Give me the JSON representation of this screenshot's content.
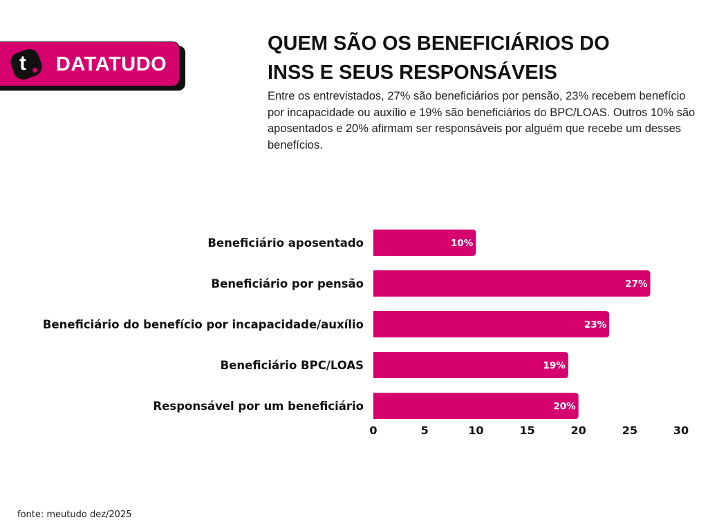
{
  "brand": {
    "logo_letter": "t",
    "name": "DATATUDO",
    "color": "#d6006e"
  },
  "header": {
    "title_line1": "QUEM SÃO OS BENEFICIÁRIOS DO",
    "title_line2": "INSS E SEUS RESPONSÁVEIS",
    "subtitle": "Entre os entrevistados, 27% são beneficiários por pensão, 23% recebem benefício por incapacidade ou auxílio e 19% são beneficiários do BPC/LOAS. Outros 10% são aposentados e 20% afirmam ser responsáveis por alguém que recebe um desses benefícios."
  },
  "footer": {
    "source": "fonte: meutudo dez/2025"
  },
  "chart_data": {
    "type": "bar",
    "orientation": "horizontal",
    "title": "QUEM SÃO OS BENEFICIÁRIOS DO INSS E SEUS RESPONSÁVEIS",
    "categories": [
      "Beneficiário aposentado",
      "Beneficiário por pensão",
      "Beneficiário do benefício por incapacidade/auxílio",
      "Beneficiário BPC/LOAS",
      "Responsável por um beneficiário"
    ],
    "values": [
      10,
      27,
      23,
      19,
      20
    ],
    "value_labels": [
      "10%",
      "27%",
      "23%",
      "19%",
      "20%"
    ],
    "xlabel": "",
    "ylabel": "",
    "xlim": [
      0,
      30
    ],
    "xticks": [
      0,
      5,
      10,
      15,
      20,
      25,
      30
    ],
    "grid": false,
    "legend": "none",
    "bar_color": "#d6006e"
  }
}
